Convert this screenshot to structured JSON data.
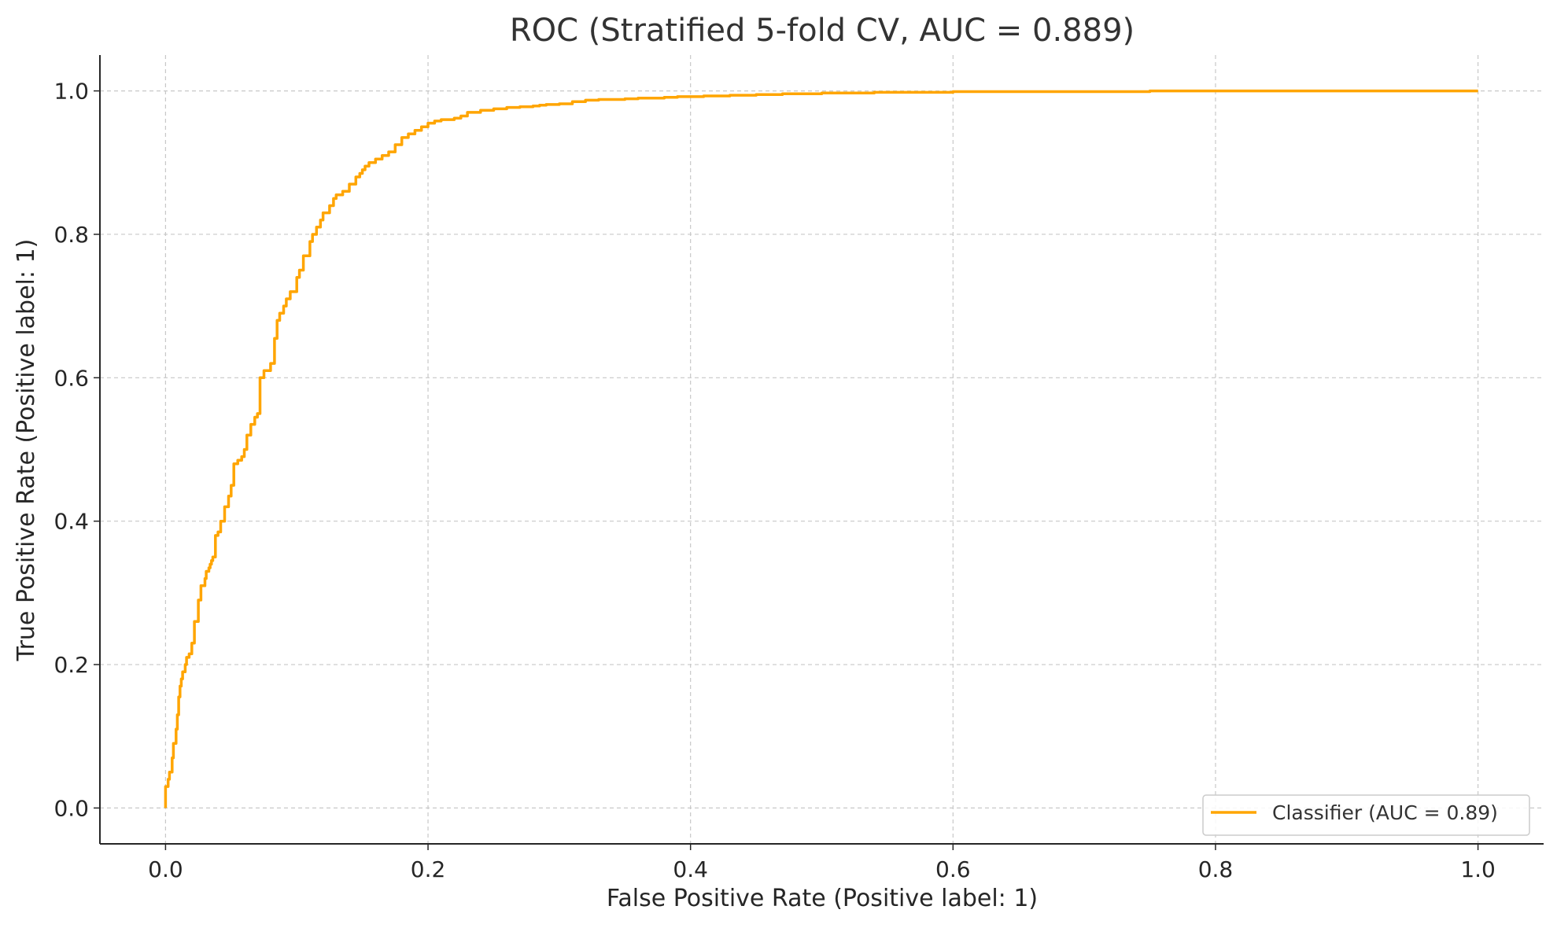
{
  "chart_data": {
    "type": "line",
    "title": "ROC (Stratified 5-fold CV, AUC = 0.889)",
    "xlabel": "False Positive Rate (Positive label: 1)",
    "ylabel": "True Positive Rate (Positive label: 1)",
    "xlim": [
      -0.05,
      1.05
    ],
    "ylim": [
      -0.05,
      1.05
    ],
    "xticks": [
      0.0,
      0.2,
      0.4,
      0.6,
      0.8,
      1.0
    ],
    "xtick_labels": [
      "0.0",
      "0.2",
      "0.4",
      "0.6",
      "0.8",
      "1.0"
    ],
    "yticks": [
      0.0,
      0.2,
      0.4,
      0.6,
      0.8,
      1.0
    ],
    "ytick_labels": [
      "0.0",
      "0.2",
      "0.4",
      "0.6",
      "0.8",
      "1.0"
    ],
    "grid": true,
    "legend_position": "lower-right",
    "series": [
      {
        "name": "Classifier (AUC = 0.89)",
        "color": "#FFA500",
        "x": [
          0.0,
          0.0,
          0.002,
          0.003,
          0.005,
          0.006,
          0.008,
          0.009,
          0.01,
          0.011,
          0.012,
          0.013,
          0.015,
          0.016,
          0.018,
          0.02,
          0.022,
          0.025,
          0.027,
          0.03,
          0.031,
          0.033,
          0.034,
          0.035,
          0.036,
          0.038,
          0.04,
          0.042,
          0.045,
          0.048,
          0.05,
          0.052,
          0.055,
          0.058,
          0.06,
          0.062,
          0.065,
          0.068,
          0.07,
          0.072,
          0.075,
          0.08,
          0.083,
          0.085,
          0.087,
          0.09,
          0.092,
          0.095,
          0.1,
          0.1,
          0.102,
          0.105,
          0.11,
          0.11,
          0.112,
          0.115,
          0.118,
          0.12,
          0.125,
          0.128,
          0.13,
          0.135,
          0.14,
          0.145,
          0.148,
          0.15,
          0.152,
          0.155,
          0.16,
          0.165,
          0.17,
          0.175,
          0.18,
          0.185,
          0.19,
          0.195,
          0.2,
          0.205,
          0.21,
          0.22,
          0.225,
          0.23,
          0.24,
          0.25,
          0.26,
          0.27,
          0.28,
          0.285,
          0.29,
          0.3,
          0.31,
          0.32,
          0.33,
          0.34,
          0.35,
          0.36,
          0.37,
          0.38,
          0.39,
          0.4,
          0.41,
          0.42,
          0.43,
          0.44,
          0.45,
          0.46,
          0.47,
          0.48,
          0.5,
          0.52,
          0.54,
          0.56,
          0.58,
          0.6,
          0.62,
          0.65,
          0.68,
          0.7,
          0.75,
          0.79,
          0.8,
          0.85,
          0.9,
          0.92,
          0.94,
          0.96,
          1.0
        ],
        "y": [
          0.0,
          0.03,
          0.04,
          0.05,
          0.07,
          0.09,
          0.11,
          0.13,
          0.155,
          0.17,
          0.18,
          0.19,
          0.2,
          0.21,
          0.215,
          0.23,
          0.26,
          0.29,
          0.31,
          0.32,
          0.33,
          0.335,
          0.34,
          0.345,
          0.35,
          0.38,
          0.385,
          0.4,
          0.42,
          0.435,
          0.45,
          0.48,
          0.485,
          0.49,
          0.5,
          0.52,
          0.535,
          0.545,
          0.55,
          0.6,
          0.61,
          0.62,
          0.655,
          0.68,
          0.69,
          0.7,
          0.71,
          0.72,
          0.73,
          0.74,
          0.75,
          0.77,
          0.78,
          0.79,
          0.8,
          0.81,
          0.82,
          0.83,
          0.84,
          0.85,
          0.855,
          0.86,
          0.87,
          0.88,
          0.885,
          0.89,
          0.895,
          0.9,
          0.905,
          0.91,
          0.915,
          0.925,
          0.935,
          0.94,
          0.945,
          0.95,
          0.955,
          0.958,
          0.96,
          0.962,
          0.965,
          0.97,
          0.973,
          0.975,
          0.977,
          0.978,
          0.979,
          0.98,
          0.981,
          0.982,
          0.985,
          0.987,
          0.988,
          0.988,
          0.989,
          0.99,
          0.99,
          0.991,
          0.992,
          0.992,
          0.993,
          0.993,
          0.994,
          0.994,
          0.995,
          0.995,
          0.996,
          0.996,
          0.997,
          0.997,
          0.998,
          0.998,
          0.998,
          0.999,
          0.999,
          0.999,
          0.999,
          0.999,
          1.0,
          1.0,
          1.0,
          1.0,
          1.0,
          1.0,
          1.0,
          1.0,
          1.0
        ]
      }
    ]
  }
}
